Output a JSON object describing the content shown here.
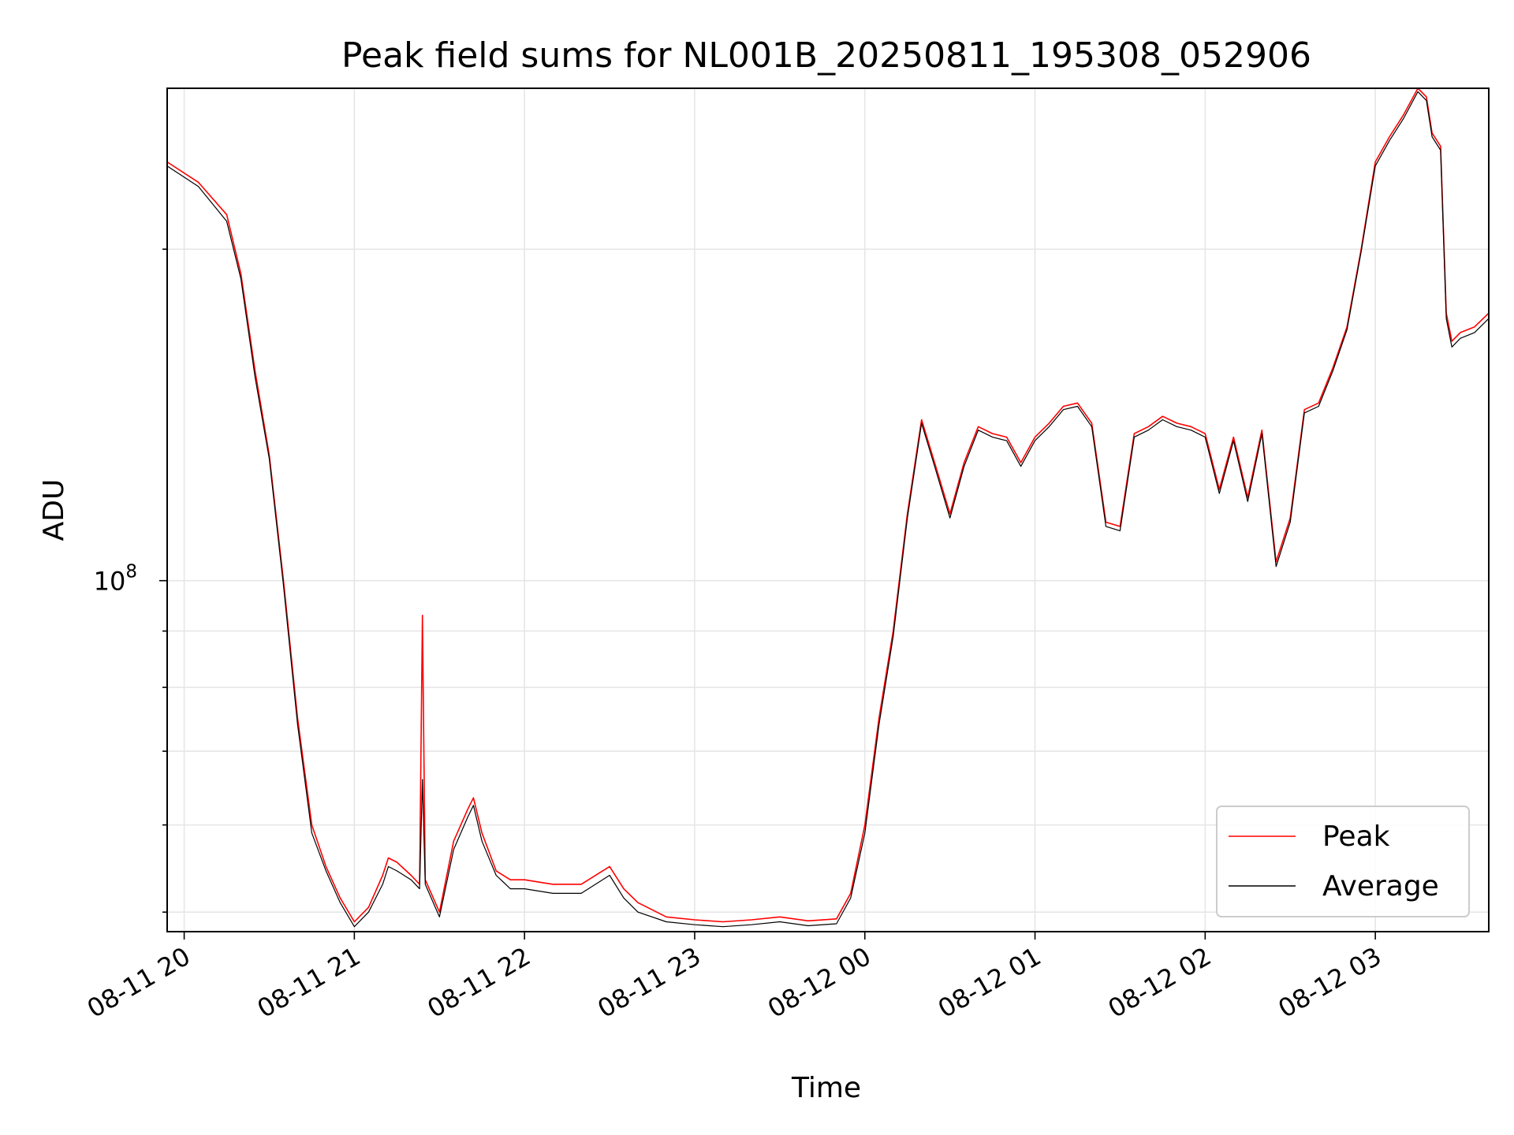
{
  "chart_data": {
    "type": "line",
    "title": "Peak field sums for NL001B_20250811_195308_052906",
    "xlabel": "Time",
    "ylabel": "ADU",
    "yscale": "log",
    "xlim": [
      "2025-08-11 19:54",
      "2025-08-12 03:40"
    ],
    "ylim": [
      48000000,
      280000000
    ],
    "grid": true,
    "legend_position": "lower-right",
    "x_ticks": [
      "08-11 20",
      "08-11 21",
      "08-11 22",
      "08-11 23",
      "08-12 00",
      "08-12 01",
      "08-12 02",
      "08-12 03"
    ],
    "y_tick_labels": [
      {
        "value": 100000000,
        "label_base": "10",
        "label_exp": "8"
      }
    ],
    "series": [
      {
        "name": "Peak",
        "color": "#ff0000",
        "x": [
          "2025-08-11 19:54",
          "2025-08-11 20:05",
          "2025-08-11 20:15",
          "2025-08-11 20:20",
          "2025-08-11 20:25",
          "2025-08-11 20:30",
          "2025-08-11 20:35",
          "2025-08-11 20:40",
          "2025-08-11 20:45",
          "2025-08-11 20:50",
          "2025-08-11 20:55",
          "2025-08-11 21:00",
          "2025-08-11 21:05",
          "2025-08-11 21:10",
          "2025-08-11 21:12",
          "2025-08-11 21:15",
          "2025-08-11 21:20",
          "2025-08-11 21:23",
          "2025-08-11 21:24",
          "2025-08-11 21:25",
          "2025-08-11 21:30",
          "2025-08-11 21:35",
          "2025-08-11 21:40",
          "2025-08-11 21:42",
          "2025-08-11 21:45",
          "2025-08-11 21:50",
          "2025-08-11 21:55",
          "2025-08-11 22:00",
          "2025-08-11 22:10",
          "2025-08-11 22:20",
          "2025-08-11 22:30",
          "2025-08-11 22:35",
          "2025-08-11 22:40",
          "2025-08-11 22:50",
          "2025-08-11 23:00",
          "2025-08-11 23:10",
          "2025-08-11 23:20",
          "2025-08-11 23:30",
          "2025-08-11 23:40",
          "2025-08-11 23:50",
          "2025-08-11 23:55",
          "2025-08-12 00:00",
          "2025-08-12 00:05",
          "2025-08-12 00:10",
          "2025-08-12 00:15",
          "2025-08-12 00:20",
          "2025-08-12 00:25",
          "2025-08-12 00:30",
          "2025-08-12 00:35",
          "2025-08-12 00:40",
          "2025-08-12 00:45",
          "2025-08-12 00:50",
          "2025-08-12 00:55",
          "2025-08-12 01:00",
          "2025-08-12 01:05",
          "2025-08-12 01:10",
          "2025-08-12 01:15",
          "2025-08-12 01:20",
          "2025-08-12 01:25",
          "2025-08-12 01:30",
          "2025-08-12 01:35",
          "2025-08-12 01:40",
          "2025-08-12 01:45",
          "2025-08-12 01:50",
          "2025-08-12 01:55",
          "2025-08-12 02:00",
          "2025-08-12 02:05",
          "2025-08-12 02:10",
          "2025-08-12 02:15",
          "2025-08-12 02:20",
          "2025-08-12 02:25",
          "2025-08-12 02:30",
          "2025-08-12 02:35",
          "2025-08-12 02:40",
          "2025-08-12 02:45",
          "2025-08-12 02:50",
          "2025-08-12 02:55",
          "2025-08-12 03:00",
          "2025-08-12 03:05",
          "2025-08-12 03:10",
          "2025-08-12 03:15",
          "2025-08-12 03:18",
          "2025-08-12 03:20",
          "2025-08-12 03:23",
          "2025-08-12 03:25",
          "2025-08-12 03:27",
          "2025-08-12 03:30",
          "2025-08-12 03:35",
          "2025-08-12 03:40"
        ],
        "y": [
          240000000,
          230000000,
          215000000,
          190000000,
          155000000,
          130000000,
          100000000,
          75000000,
          60000000,
          55000000,
          51500000,
          49000000,
          50500000,
          54000000,
          56000000,
          55500000,
          54000000,
          53000000,
          93000000,
          53500000,
          50000000,
          58000000,
          62000000,
          63500000,
          59000000,
          54500000,
          53500000,
          53500000,
          53000000,
          53000000,
          55000000,
          52500000,
          51000000,
          49500000,
          49200000,
          49000000,
          49200000,
          49500000,
          49100000,
          49300000,
          52000000,
          60000000,
          75000000,
          90000000,
          115000000,
          140000000,
          127000000,
          115000000,
          128000000,
          138000000,
          136000000,
          135000000,
          128000000,
          135000000,
          139000000,
          144000000,
          145000000,
          139000000,
          113000000,
          112000000,
          136000000,
          138000000,
          141000000,
          139000000,
          138000000,
          136000000,
          121000000,
          135000000,
          119000000,
          137000000,
          104000000,
          114000000,
          143000000,
          145000000,
          156000000,
          170000000,
          200000000,
          240000000,
          253000000,
          265000000,
          280000000,
          275000000,
          255000000,
          248000000,
          175000000,
          165000000,
          168000000,
          170000000,
          175000000
        ]
      },
      {
        "name": "Average",
        "color": "#000000",
        "x": [
          "2025-08-11 19:54",
          "2025-08-11 20:05",
          "2025-08-11 20:15",
          "2025-08-11 20:20",
          "2025-08-11 20:25",
          "2025-08-11 20:30",
          "2025-08-11 20:35",
          "2025-08-11 20:40",
          "2025-08-11 20:45",
          "2025-08-11 20:50",
          "2025-08-11 20:55",
          "2025-08-11 21:00",
          "2025-08-11 21:05",
          "2025-08-11 21:10",
          "2025-08-11 21:12",
          "2025-08-11 21:15",
          "2025-08-11 21:20",
          "2025-08-11 21:23",
          "2025-08-11 21:24",
          "2025-08-11 21:25",
          "2025-08-11 21:30",
          "2025-08-11 21:35",
          "2025-08-11 21:40",
          "2025-08-11 21:42",
          "2025-08-11 21:45",
          "2025-08-11 21:50",
          "2025-08-11 21:55",
          "2025-08-11 22:00",
          "2025-08-11 22:10",
          "2025-08-11 22:20",
          "2025-08-11 22:30",
          "2025-08-11 22:35",
          "2025-08-11 22:40",
          "2025-08-11 22:50",
          "2025-08-11 23:00",
          "2025-08-11 23:10",
          "2025-08-11 23:20",
          "2025-08-11 23:30",
          "2025-08-11 23:40",
          "2025-08-11 23:50",
          "2025-08-11 23:55",
          "2025-08-12 00:00",
          "2025-08-12 00:05",
          "2025-08-12 00:10",
          "2025-08-12 00:15",
          "2025-08-12 00:20",
          "2025-08-12 00:25",
          "2025-08-12 00:30",
          "2025-08-12 00:35",
          "2025-08-12 00:40",
          "2025-08-12 00:45",
          "2025-08-12 00:50",
          "2025-08-12 00:55",
          "2025-08-12 01:00",
          "2025-08-12 01:05",
          "2025-08-12 01:10",
          "2025-08-12 01:15",
          "2025-08-12 01:20",
          "2025-08-12 01:25",
          "2025-08-12 01:30",
          "2025-08-12 01:35",
          "2025-08-12 01:40",
          "2025-08-12 01:45",
          "2025-08-12 01:50",
          "2025-08-12 01:55",
          "2025-08-12 02:00",
          "2025-08-12 02:05",
          "2025-08-12 02:10",
          "2025-08-12 02:15",
          "2025-08-12 02:20",
          "2025-08-12 02:25",
          "2025-08-12 02:30",
          "2025-08-12 02:35",
          "2025-08-12 02:40",
          "2025-08-12 02:45",
          "2025-08-12 02:50",
          "2025-08-12 02:55",
          "2025-08-12 03:00",
          "2025-08-12 03:05",
          "2025-08-12 03:10",
          "2025-08-12 03:15",
          "2025-08-12 03:18",
          "2025-08-12 03:20",
          "2025-08-12 03:23",
          "2025-08-12 03:25",
          "2025-08-12 03:27",
          "2025-08-12 03:30",
          "2025-08-12 03:35",
          "2025-08-12 03:40"
        ],
        "y": [
          238000000,
          228000000,
          212000000,
          188000000,
          153000000,
          129000000,
          99000000,
          74000000,
          59000000,
          54500000,
          51000000,
          48500000,
          50000000,
          53000000,
          55000000,
          54500000,
          53500000,
          52500000,
          66000000,
          53000000,
          49500000,
          57000000,
          61000000,
          62500000,
          58000000,
          54000000,
          52500000,
          52500000,
          52000000,
          52000000,
          54000000,
          51500000,
          50000000,
          49000000,
          48700000,
          48500000,
          48700000,
          49000000,
          48600000,
          48800000,
          51500000,
          59000000,
          74000000,
          89000000,
          114000000,
          139000000,
          126000000,
          114000000,
          127000000,
          137000000,
          135000000,
          134000000,
          127000000,
          134000000,
          138000000,
          143000000,
          144000000,
          138000000,
          112000000,
          111000000,
          135000000,
          137000000,
          140000000,
          138000000,
          137000000,
          135000000,
          120000000,
          134000000,
          118000000,
          136000000,
          103000000,
          113000000,
          142000000,
          144000000,
          155000000,
          169000000,
          199000000,
          238000000,
          251000000,
          263000000,
          278000000,
          273000000,
          253000000,
          246000000,
          173000000,
          163000000,
          166000000,
          168000000,
          173000000
        ]
      }
    ]
  }
}
